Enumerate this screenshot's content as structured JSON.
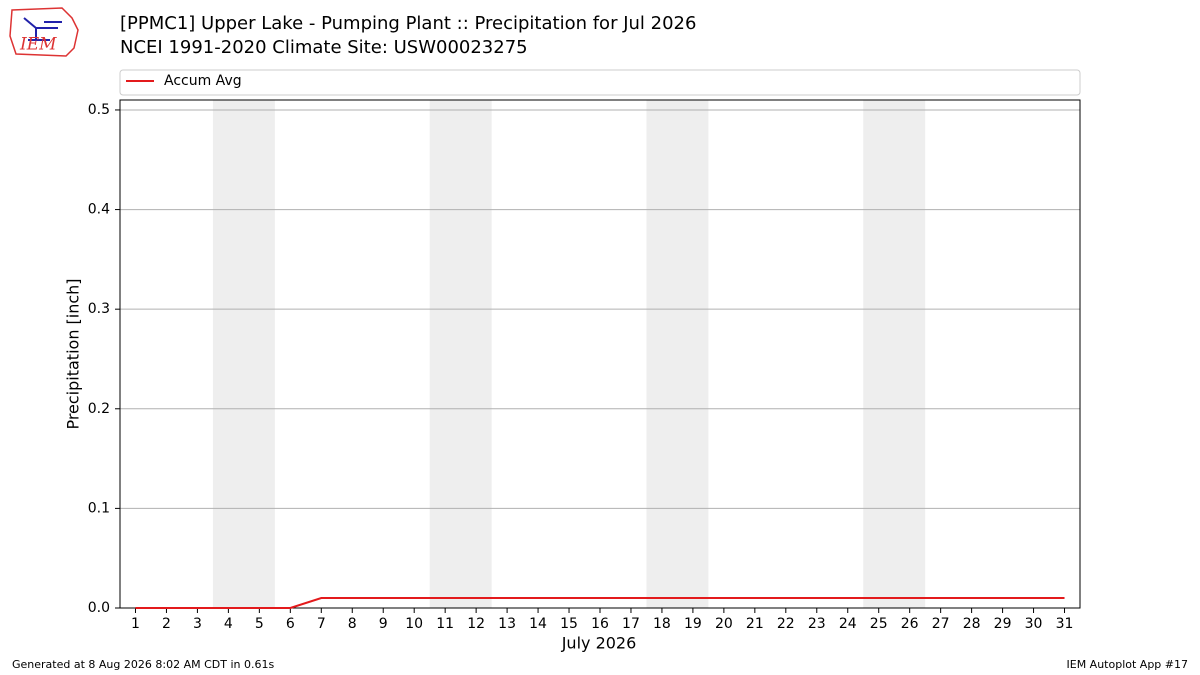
{
  "chart_data": {
    "type": "line",
    "title": "[PPMC1] Upper Lake - Pumping Plant :: Precipitation for Jul 2026",
    "subtitle": "NCEI 1991-2020 Climate Site: USW00023275",
    "xlabel": "July 2026",
    "ylabel": "Precipitation [inch]",
    "x": [
      1,
      2,
      3,
      4,
      5,
      6,
      7,
      8,
      9,
      10,
      11,
      12,
      13,
      14,
      15,
      16,
      17,
      18,
      19,
      20,
      21,
      22,
      23,
      24,
      25,
      26,
      27,
      28,
      29,
      30,
      31
    ],
    "series": [
      {
        "name": "Accum Avg",
        "color": "#e31a1c",
        "values": [
          0,
          0,
          0,
          0,
          0,
          0,
          0.01,
          0.01,
          0.01,
          0.01,
          0.01,
          0.01,
          0.01,
          0.01,
          0.01,
          0.01,
          0.01,
          0.01,
          0.01,
          0.01,
          0.01,
          0.01,
          0.01,
          0.01,
          0.01,
          0.01,
          0.01,
          0.01,
          0.01,
          0.01,
          0.01
        ]
      }
    ],
    "xlim": [
      0.5,
      31.5
    ],
    "xticks": [
      1,
      2,
      3,
      4,
      5,
      6,
      7,
      8,
      9,
      10,
      11,
      12,
      13,
      14,
      15,
      16,
      17,
      18,
      19,
      20,
      21,
      22,
      23,
      24,
      25,
      26,
      27,
      28,
      29,
      30,
      31
    ],
    "ylim": [
      0,
      0.51
    ],
    "yticks": [
      {
        "value": 0,
        "label": "0.0"
      },
      0.1,
      0.2,
      0.3,
      0.4,
      0.5
    ],
    "grid": true,
    "legend": "top",
    "weekend_spans": [
      [
        3.5,
        5.5
      ],
      [
        10.5,
        12.5
      ],
      [
        17.5,
        19.5
      ],
      [
        24.5,
        26.5
      ]
    ],
    "weekend_color": "#eeeeee"
  },
  "logo_text": "IEM",
  "footer_left": "Generated at 8 Aug 2026 8:02 AM CDT in 0.61s",
  "footer_right": "IEM Autoplot App #17"
}
